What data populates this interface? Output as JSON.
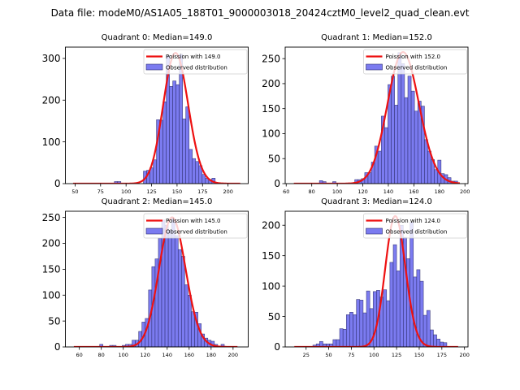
{
  "figure": {
    "suptitle": "Data file: modeM0/AS1A05_188T01_9000003018_20424cztM0_level2_quad_clean.evt"
  },
  "colors": {
    "bar_fill": "#7b7bf0",
    "bar_edge": "#2a2a6a",
    "curve": "#ee1111",
    "axes": "#000000"
  },
  "chart_data": [
    {
      "type": "bar",
      "title": "Quadrant 0: Median=149.0",
      "xlabel": "",
      "ylabel": "",
      "xlim": [
        40.5,
        219.8
      ],
      "ylim": [
        0,
        327
      ],
      "xticks": [
        50,
        75,
        100,
        125,
        150,
        175,
        200
      ],
      "yticks": [
        0,
        100,
        200,
        300
      ],
      "legend": {
        "position": "top-right",
        "entries": [
          "Poission with 149.0",
          "Observed distribution"
        ]
      },
      "histogram": {
        "bin_width": 3.2,
        "bins": [
          {
            "start": 88.5,
            "count": 5
          },
          {
            "start": 91.7,
            "count": 5
          },
          {
            "start": 117.0,
            "count": 30
          },
          {
            "start": 120.2,
            "count": 32
          },
          {
            "start": 123.4,
            "count": 38
          },
          {
            "start": 126.6,
            "count": 57
          },
          {
            "start": 129.8,
            "count": 153
          },
          {
            "start": 133.0,
            "count": 152
          },
          {
            "start": 136.2,
            "count": 196
          },
          {
            "start": 139.4,
            "count": 307
          },
          {
            "start": 142.6,
            "count": 233
          },
          {
            "start": 145.8,
            "count": 246
          },
          {
            "start": 149.0,
            "count": 237
          },
          {
            "start": 152.2,
            "count": 310
          },
          {
            "start": 155.4,
            "count": 155
          },
          {
            "start": 158.6,
            "count": 184
          },
          {
            "start": 161.8,
            "count": 82
          },
          {
            "start": 165.0,
            "count": 60
          },
          {
            "start": 168.2,
            "count": 53
          },
          {
            "start": 171.4,
            "count": 43
          },
          {
            "start": 174.6,
            "count": 22
          },
          {
            "start": 177.8,
            "count": 13
          },
          {
            "start": 181.0,
            "count": 10
          },
          {
            "start": 184.2,
            "count": 13
          }
        ]
      },
      "poisson": {
        "mean": 149.0,
        "peak": 313,
        "x_range": [
          48,
          212
        ]
      }
    },
    {
      "type": "bar",
      "title": "Quadrant 1: Median=152.0",
      "xlabel": "",
      "ylabel": "",
      "xlim": [
        59.2,
        202.4
      ],
      "ylim": [
        0,
        273
      ],
      "xticks": [
        60,
        80,
        100,
        120,
        140,
        160,
        180,
        200
      ],
      "yticks": [
        0,
        50,
        100,
        150,
        200,
        250
      ],
      "legend": {
        "position": "top-right",
        "entries": [
          "Poission with 152.0",
          "Observed distribution"
        ]
      },
      "histogram": {
        "bin_width": 2.6,
        "bins": [
          {
            "start": 86.0,
            "count": 6
          },
          {
            "start": 88.6,
            "count": 4
          },
          {
            "start": 96.4,
            "count": 4
          },
          {
            "start": 113.7,
            "count": 8
          },
          {
            "start": 116.3,
            "count": 8
          },
          {
            "start": 118.9,
            "count": 10
          },
          {
            "start": 121.5,
            "count": 22
          },
          {
            "start": 124.1,
            "count": 22
          },
          {
            "start": 126.7,
            "count": 43
          },
          {
            "start": 129.3,
            "count": 75
          },
          {
            "start": 131.9,
            "count": 65
          },
          {
            "start": 134.5,
            "count": 135
          },
          {
            "start": 137.1,
            "count": 112
          },
          {
            "start": 139.7,
            "count": 198
          },
          {
            "start": 142.3,
            "count": 215
          },
          {
            "start": 144.9,
            "count": 157
          },
          {
            "start": 147.5,
            "count": 262
          },
          {
            "start": 150.1,
            "count": 240
          },
          {
            "start": 152.7,
            "count": 172
          },
          {
            "start": 155.3,
            "count": 215
          },
          {
            "start": 157.9,
            "count": 185
          },
          {
            "start": 160.5,
            "count": 145
          },
          {
            "start": 163.1,
            "count": 165
          },
          {
            "start": 165.7,
            "count": 155
          },
          {
            "start": 168.3,
            "count": 88
          },
          {
            "start": 170.9,
            "count": 65
          },
          {
            "start": 173.5,
            "count": 48
          },
          {
            "start": 176.1,
            "count": 28
          },
          {
            "start": 178.7,
            "count": 47
          },
          {
            "start": 181.3,
            "count": 20
          },
          {
            "start": 183.9,
            "count": 18
          },
          {
            "start": 186.5,
            "count": 12
          },
          {
            "start": 189.1,
            "count": 5
          },
          {
            "start": 191.7,
            "count": 5
          }
        ]
      },
      "poisson": {
        "mean": 152.0,
        "peak": 263,
        "x_range": [
          66,
          196
        ]
      }
    },
    {
      "type": "bar",
      "title": "Quadrant 2: Median=145.0",
      "xlabel": "",
      "ylabel": "",
      "xlim": [
        47.3,
        213.8
      ],
      "ylim": [
        0,
        262
      ],
      "xticks": [
        60,
        80,
        100,
        120,
        140,
        160,
        180,
        200
      ],
      "yticks": [
        0,
        50,
        100,
        150,
        200,
        250
      ],
      "legend": {
        "position": "top-right",
        "entries": [
          "Poission with 145.0",
          "Observed distribution"
        ]
      },
      "histogram": {
        "bin_width": 3.0,
        "bins": [
          {
            "start": 78.5,
            "count": 5
          },
          {
            "start": 87.5,
            "count": 3
          },
          {
            "start": 90.5,
            "count": 3
          },
          {
            "start": 99.0,
            "count": 3
          },
          {
            "start": 102.0,
            "count": 5
          },
          {
            "start": 105.0,
            "count": 5
          },
          {
            "start": 108.0,
            "count": 13
          },
          {
            "start": 111.0,
            "count": 13
          },
          {
            "start": 114.0,
            "count": 30
          },
          {
            "start": 117.0,
            "count": 48
          },
          {
            "start": 120.0,
            "count": 55
          },
          {
            "start": 123.0,
            "count": 110
          },
          {
            "start": 126.0,
            "count": 155
          },
          {
            "start": 129.0,
            "count": 170
          },
          {
            "start": 132.0,
            "count": 210
          },
          {
            "start": 135.0,
            "count": 245
          },
          {
            "start": 138.0,
            "count": 235
          },
          {
            "start": 141.0,
            "count": 225
          },
          {
            "start": 144.0,
            "count": 248
          },
          {
            "start": 147.0,
            "count": 215
          },
          {
            "start": 150.0,
            "count": 188
          },
          {
            "start": 153.0,
            "count": 175
          },
          {
            "start": 156.0,
            "count": 120
          },
          {
            "start": 159.0,
            "count": 100
          },
          {
            "start": 162.0,
            "count": 68
          },
          {
            "start": 165.0,
            "count": 67
          },
          {
            "start": 168.0,
            "count": 45
          },
          {
            "start": 171.0,
            "count": 25
          },
          {
            "start": 174.0,
            "count": 17
          },
          {
            "start": 177.0,
            "count": 13
          },
          {
            "start": 180.0,
            "count": 11
          },
          {
            "start": 183.0,
            "count": 5
          },
          {
            "start": 189.0,
            "count": 5
          }
        ]
      },
      "poisson": {
        "mean": 145.0,
        "peak": 250,
        "x_range": [
          55,
          204
        ]
      }
    },
    {
      "type": "bar",
      "title": "Quadrant 3: Median=124.0",
      "xlabel": "",
      "ylabel": "",
      "xlim": [
        1.9,
        203.9
      ],
      "ylim": [
        0,
        223
      ],
      "xticks": [
        25,
        50,
        75,
        100,
        125,
        150,
        175,
        200
      ],
      "yticks": [
        0,
        50,
        100,
        150,
        200
      ],
      "legend": {
        "position": "top-right",
        "entries": [
          "Poission with 124.0",
          "Observed distribution"
        ]
      },
      "histogram": {
        "bin_width": 3.7,
        "bins": [
          {
            "start": 32.5,
            "count": 3
          },
          {
            "start": 36.2,
            "count": 5
          },
          {
            "start": 39.9,
            "count": 9
          },
          {
            "start": 43.6,
            "count": 5
          },
          {
            "start": 47.3,
            "count": 5
          },
          {
            "start": 51.0,
            "count": 5
          },
          {
            "start": 54.7,
            "count": 12
          },
          {
            "start": 58.4,
            "count": 12
          },
          {
            "start": 62.1,
            "count": 30
          },
          {
            "start": 65.8,
            "count": 29
          },
          {
            "start": 69.5,
            "count": 53
          },
          {
            "start": 73.2,
            "count": 57
          },
          {
            "start": 76.9,
            "count": 53
          },
          {
            "start": 80.6,
            "count": 78
          },
          {
            "start": 84.3,
            "count": 77
          },
          {
            "start": 88.0,
            "count": 56
          },
          {
            "start": 91.7,
            "count": 92
          },
          {
            "start": 95.4,
            "count": 63
          },
          {
            "start": 99.1,
            "count": 91
          },
          {
            "start": 102.8,
            "count": 93
          },
          {
            "start": 106.5,
            "count": 82
          },
          {
            "start": 110.2,
            "count": 94
          },
          {
            "start": 113.9,
            "count": 76
          },
          {
            "start": 117.6,
            "count": 139
          },
          {
            "start": 121.3,
            "count": 168
          },
          {
            "start": 125.0,
            "count": 125
          },
          {
            "start": 128.7,
            "count": 200
          },
          {
            "start": 132.4,
            "count": 180
          },
          {
            "start": 136.1,
            "count": 145
          },
          {
            "start": 139.8,
            "count": 205
          },
          {
            "start": 143.5,
            "count": 115
          },
          {
            "start": 147.2,
            "count": 127
          },
          {
            "start": 150.9,
            "count": 108
          },
          {
            "start": 154.6,
            "count": 52
          },
          {
            "start": 158.3,
            "count": 60
          },
          {
            "start": 162.0,
            "count": 28
          },
          {
            "start": 165.7,
            "count": 20
          },
          {
            "start": 169.4,
            "count": 13
          },
          {
            "start": 173.1,
            "count": 8
          },
          {
            "start": 176.8,
            "count": 7
          }
        ]
      },
      "poisson": {
        "mean": 124.0,
        "peak": 215,
        "x_range": [
          12,
          193
        ]
      }
    }
  ]
}
